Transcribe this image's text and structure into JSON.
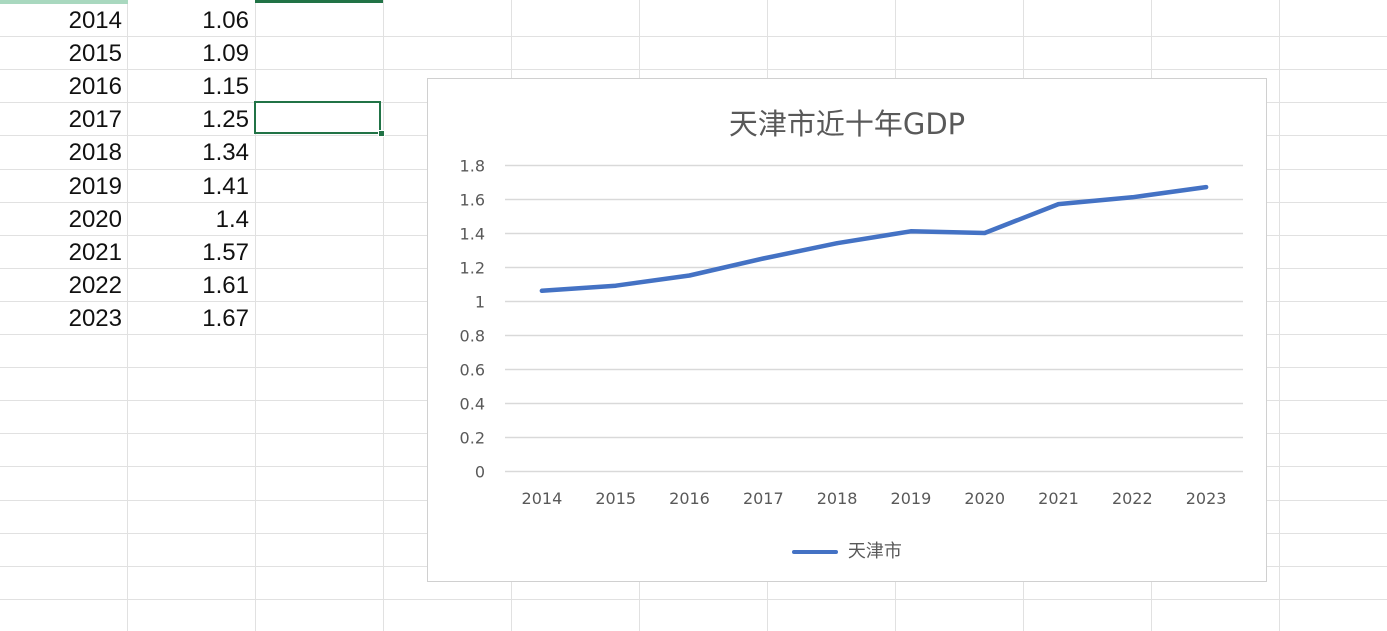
{
  "sheet": {
    "rows": [
      {
        "year": "2014",
        "value": "1.06"
      },
      {
        "year": "2015",
        "value": "1.09"
      },
      {
        "year": "2016",
        "value": "1.15"
      },
      {
        "year": "2017",
        "value": "1.25"
      },
      {
        "year": "2018",
        "value": "1.34"
      },
      {
        "year": "2019",
        "value": "1.41"
      },
      {
        "year": "2020",
        "value": "1.4"
      },
      {
        "year": "2021",
        "value": "1.57"
      },
      {
        "year": "2022",
        "value": "1.61"
      },
      {
        "year": "2023",
        "value": "1.67"
      }
    ]
  },
  "chart_data": {
    "type": "line",
    "title": "天津市近十年GDP",
    "categories": [
      "2014",
      "2015",
      "2016",
      "2017",
      "2018",
      "2019",
      "2020",
      "2021",
      "2022",
      "2023"
    ],
    "series": [
      {
        "name": "天津市",
        "values": [
          1.06,
          1.09,
          1.15,
          1.25,
          1.34,
          1.41,
          1.4,
          1.57,
          1.61,
          1.67
        ],
        "color": "#4472c4"
      }
    ],
    "ylim": [
      0,
      1.8
    ],
    "yticks": [
      "0",
      "0.2",
      "0.4",
      "0.6",
      "0.8",
      "1",
      "1.2",
      "1.4",
      "1.6",
      "1.8"
    ],
    "xlabel": "",
    "ylabel": "",
    "grid": true,
    "legend": "bottom"
  },
  "colors": {
    "gridline": "#e1e1e1",
    "selection": "#217346",
    "chart_gridline": "#d9d9d9",
    "axis_text": "#595959"
  }
}
